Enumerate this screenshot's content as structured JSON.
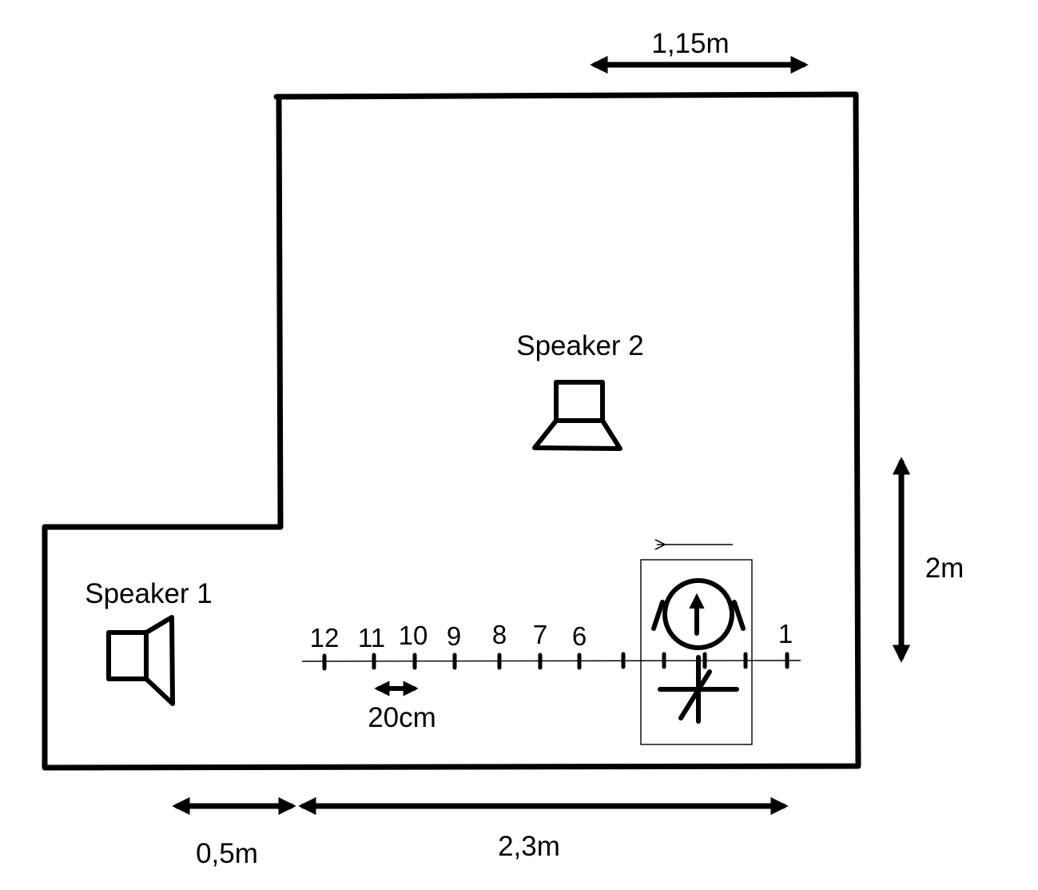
{
  "speakers": {
    "speaker1": "Speaker 1",
    "speaker2": "Speaker 2"
  },
  "dimensions": {
    "top_width": "1,15m",
    "right_depth": "2m",
    "bottom_left": "0,5m",
    "bottom_right": "2,3m",
    "spacing": "20cm"
  },
  "positions": {
    "labeled": [
      "12",
      "11",
      "10",
      "9",
      "8",
      "7",
      "6",
      "1"
    ]
  },
  "icons": {
    "speaker": "speaker-icon",
    "listener": "listener-head-icon",
    "direction": "movement-arrow-icon",
    "tripod": "tripod-icon"
  }
}
